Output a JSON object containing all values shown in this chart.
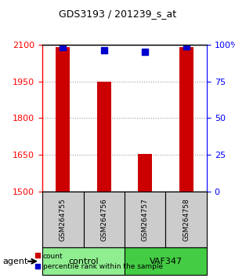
{
  "title": "GDS3193 / 201239_s_at",
  "samples": [
    "GSM264755",
    "GSM264756",
    "GSM264757",
    "GSM264758"
  ],
  "counts": [
    2090,
    1950,
    1655,
    2090
  ],
  "percentile_ranks": [
    98,
    96,
    95,
    99
  ],
  "ymin": 1500,
  "ymax": 2100,
  "yticks": [
    1500,
    1650,
    1800,
    1950,
    2100
  ],
  "ytick_labels_left": [
    "1500",
    "1650",
    "1800",
    "1950",
    "2100"
  ],
  "right_axis_ticks": [
    0,
    25,
    50,
    75,
    100
  ],
  "right_axis_labels": [
    "0",
    "25",
    "50",
    "75",
    "100%"
  ],
  "bar_color": "#cc0000",
  "dot_color": "#0000cc",
  "groups": [
    {
      "label": "control",
      "samples": [
        0,
        1
      ],
      "color": "#90ee90"
    },
    {
      "label": "VAF347",
      "samples": [
        2,
        3
      ],
      "color": "#44cc44"
    }
  ],
  "group_label_prefix": "agent",
  "xlabel_color": "red",
  "right_axis_color": "blue",
  "bar_width": 0.35,
  "dot_size": 40,
  "background_color": "#ffffff",
  "plot_bg_color": "#ffffff",
  "sample_label_bg": "#cccccc",
  "grid_color": "#000000",
  "grid_alpha": 0.4,
  "grid_linestyle": "dotted"
}
